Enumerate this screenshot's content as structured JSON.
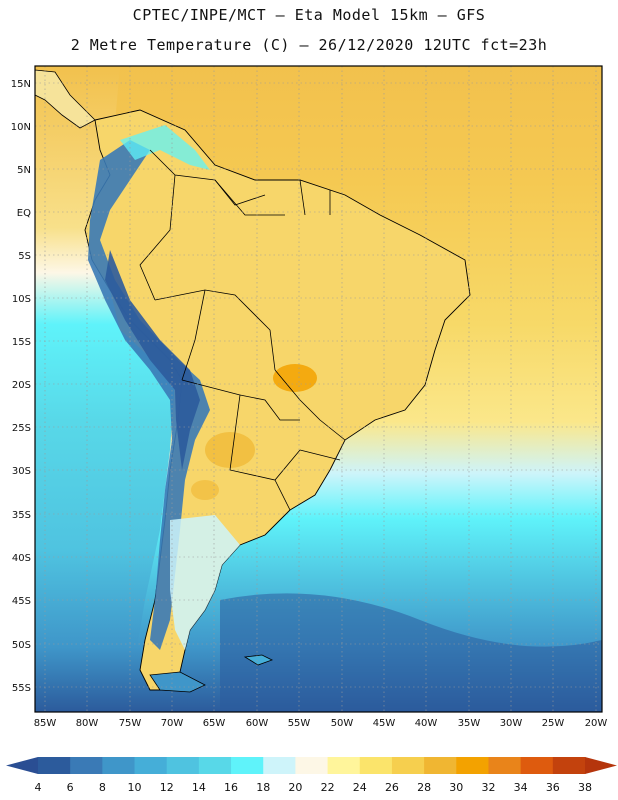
{
  "header": {
    "line1": "CPTEC/INPE/MCT –  Eta Model 15km – GFS",
    "line2": "2 Metre Temperature (C) – 26/12/2020 12UTC fct=23h"
  },
  "map": {
    "lat_labels": [
      "15N",
      "10N",
      "5N",
      "EQ",
      "5S",
      "10S",
      "15S",
      "20S",
      "25S",
      "30S",
      "35S",
      "40S",
      "45S",
      "50S",
      "55S"
    ],
    "lon_labels": [
      "85W",
      "80W",
      "75W",
      "70W",
      "65W",
      "60W",
      "55W",
      "50W",
      "45W",
      "40W",
      "35W",
      "30W",
      "25W",
      "20W"
    ]
  },
  "colorbar": {
    "labels": [
      "4",
      "6",
      "8",
      "10",
      "12",
      "14",
      "16",
      "18",
      "20",
      "22",
      "24",
      "26",
      "28",
      "30",
      "32",
      "34",
      "36",
      "38"
    ],
    "colors": [
      "#2c5b9c",
      "#3a7ab6",
      "#3f96c9",
      "#45aed8",
      "#4fc3e0",
      "#58d8e8",
      "#5ff3fa",
      "#cef4fa",
      "#fdf7e6",
      "#fff59b",
      "#fbe46b",
      "#f6cf4e",
      "#f0b632",
      "#f3a200",
      "#e9841a",
      "#de5b0e",
      "#c3420d"
    ],
    "under_color": "#2a4e93",
    "over_color": "#b5350c"
  },
  "palette": {
    "ocean_warm": "#f5c953",
    "land": "#f7d66a",
    "border": "#000000",
    "grid": "#888888"
  }
}
